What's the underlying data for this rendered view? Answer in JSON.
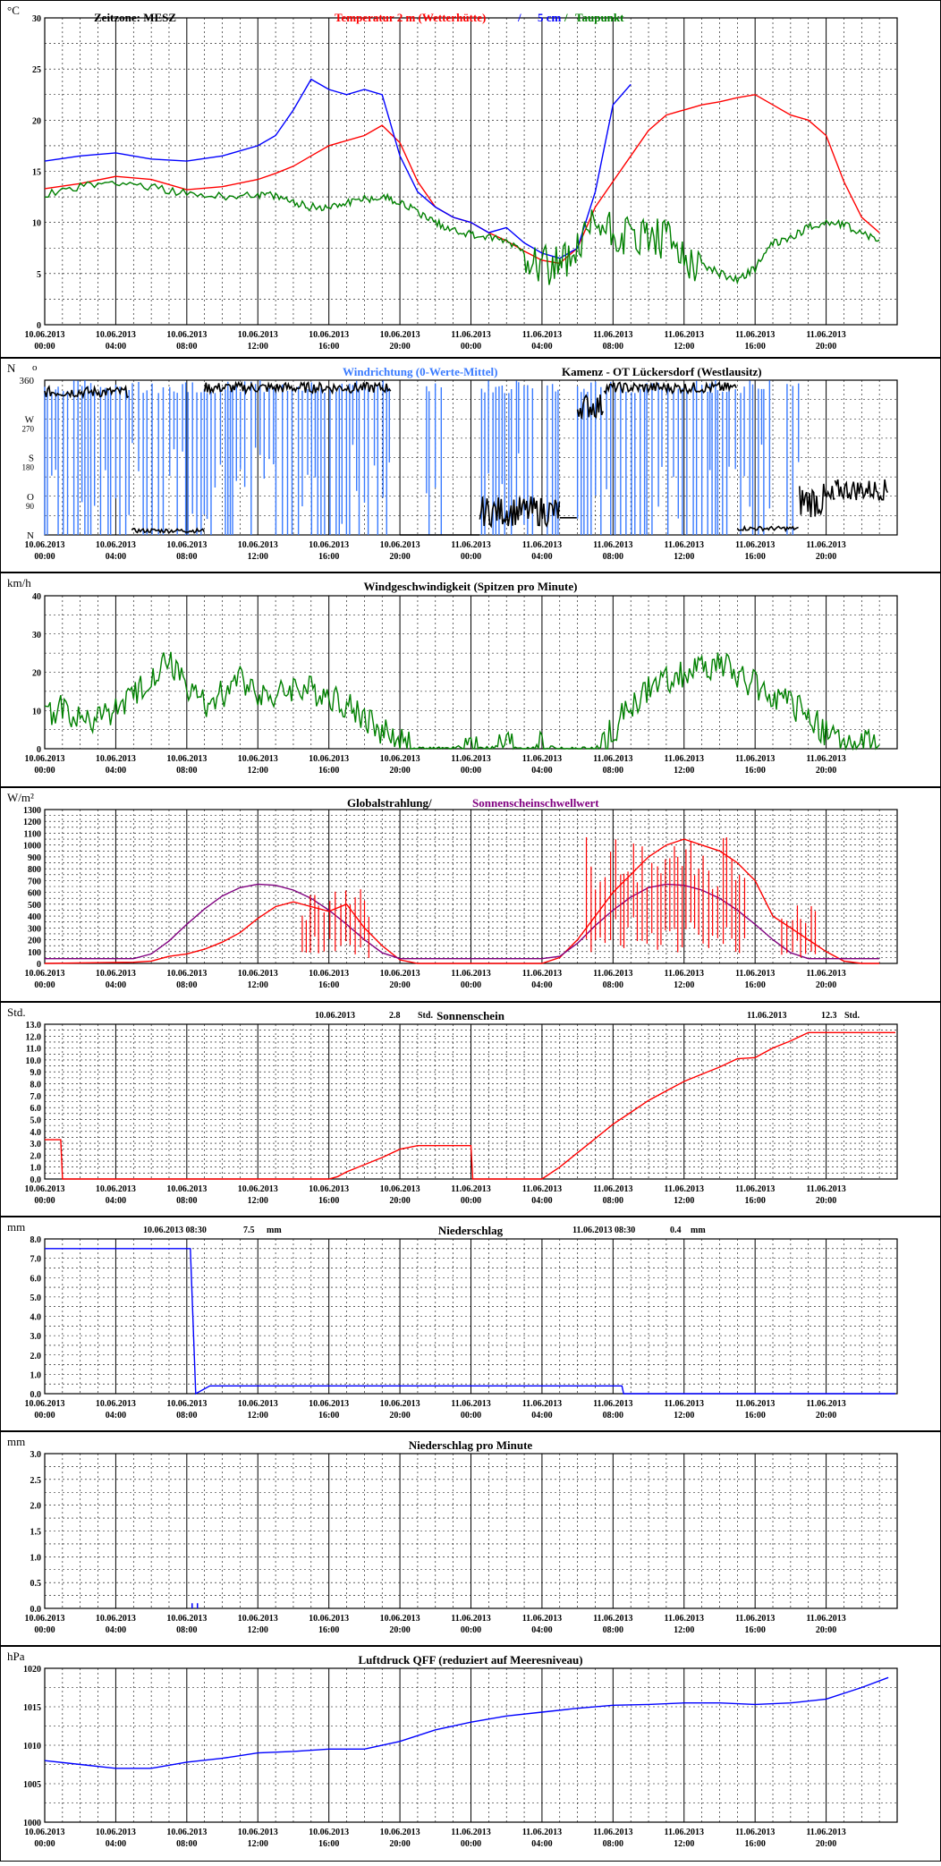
{
  "x_ticks": [
    [
      "10.06.2013",
      "00:00"
    ],
    [
      "10.06.2013",
      "04:00"
    ],
    [
      "10.06.2013",
      "08:00"
    ],
    [
      "10.06.2013",
      "12:00"
    ],
    [
      "10.06.2013",
      "16:00"
    ],
    [
      "10.06.2013",
      "20:00"
    ],
    [
      "11.06.2013",
      "00:00"
    ],
    [
      "11.06.2013",
      "04:00"
    ],
    [
      "11.06.2013",
      "08:00"
    ],
    [
      "11.06.2013",
      "12:00"
    ],
    [
      "11.06.2013",
      "16:00"
    ],
    [
      "11.06.2013",
      "20:00"
    ]
  ],
  "colors": {
    "frame": "#000000",
    "grid": "#000000",
    "red": "#ff0000",
    "blue": "#0000ff",
    "green": "#008000",
    "purple": "#800080",
    "lightblue": "#3a7bff",
    "black": "#000000"
  },
  "chart_data": [
    {
      "type": "line",
      "unit": "°C",
      "title_parts": [
        {
          "text": "Zeitzone: MESZ",
          "color": "#000000"
        },
        {
          "text": "Temperatur 2 m (Wetterhütte)",
          "color": "#ff0000"
        },
        {
          "text": " / ",
          "color": "#0000ff"
        },
        {
          "text": "5 cm",
          "color": "#0000ff"
        },
        {
          "text": " / ",
          "color": "#008000"
        },
        {
          "text": "Taupunkt",
          "color": "#008000"
        }
      ],
      "ylim": [
        0,
        30
      ],
      "yticks": [
        0,
        5,
        10,
        15,
        20,
        25,
        30
      ],
      "x_hours": [
        0,
        2,
        4,
        6,
        8,
        10,
        12,
        13,
        14,
        15,
        16,
        17,
        18,
        19,
        20,
        21,
        22,
        23,
        24,
        25,
        26,
        27,
        28,
        29,
        30,
        31,
        32,
        33,
        34,
        35,
        36,
        37,
        38,
        39,
        40,
        41,
        42,
        43,
        44,
        45,
        46,
        47
      ],
      "series": [
        {
          "name": "Temperatur 2 m (Wetterhütte)",
          "color": "#ff0000",
          "values": [
            13.3,
            13.8,
            14.5,
            14.2,
            13.2,
            13.5,
            14.2,
            14.8,
            15.5,
            16.5,
            17.5,
            18.0,
            18.5,
            19.5,
            17.8,
            14.0,
            11.5,
            10.5,
            10.0,
            9.0,
            8.2,
            7.2,
            6.3,
            6.0,
            7.5,
            11.5,
            14.0,
            16.5,
            19.0,
            20.5,
            21.0,
            21.5,
            21.8,
            22.2,
            22.5,
            21.5,
            20.5,
            20.0,
            18.5,
            14.0,
            10.5,
            9.0
          ]
        },
        {
          "name": "5 cm",
          "color": "#0000ff",
          "values": [
            16.0,
            16.5,
            16.8,
            16.2,
            16.0,
            16.5,
            17.5,
            18.5,
            21.0,
            24.0,
            23.0,
            22.5,
            23.0,
            22.5,
            16.5,
            13.0,
            11.5,
            10.5,
            10.0,
            9.0,
            9.5,
            8.0,
            7.0,
            6.5,
            7.5,
            13.0,
            21.5,
            23.5,
            null,
            null,
            null,
            null,
            null,
            null,
            null,
            null,
            null,
            null,
            null,
            null,
            null,
            null
          ]
        },
        {
          "name": "Taupunkt",
          "color": "#008000",
          "values": [
            12.8,
            13.5,
            14.0,
            13.5,
            12.8,
            12.5,
            12.8,
            12.5,
            12.0,
            11.5,
            11.5,
            12.0,
            12.3,
            12.5,
            12.0,
            11.0,
            10.0,
            9.3,
            8.8,
            8.5,
            8.2,
            7.2,
            6.2,
            5.8,
            7.0,
            10.0,
            9.0,
            8.5,
            8.5,
            8.0,
            7.0,
            6.0,
            5.0,
            4.5,
            5.5,
            8.0,
            8.5,
            9.5,
            10.0,
            9.8,
            9.0,
            8.3
          ]
        }
      ]
    },
    {
      "type": "scatter",
      "unit": "N",
      "title": "Windrichtung (0-Werte-Mittel)",
      "subtitle": "Kamenz - OT Lückersdorf (Westlausitz)",
      "ylim": [
        0,
        360
      ],
      "ytick_labels": [
        [
          "360",
          "360"
        ],
        [
          "W",
          "270"
        ],
        [
          "S",
          "180"
        ],
        [
          "O",
          "90"
        ],
        [
          "N",
          "0"
        ]
      ],
      "extra_ticks": [
        [
          "270",
          "270"
        ],
        [
          "180",
          "180"
        ],
        [
          "90",
          "90"
        ]
      ],
      "degree_mark": "o",
      "series": [
        {
          "name": "Windrichtung",
          "color": "#3a7bff",
          "values": []
        },
        {
          "name": "Mittel",
          "color": "#000000",
          "values": []
        }
      ]
    },
    {
      "type": "line",
      "unit": "km/h",
      "title": "Windgeschwindigkeit (Spitzen pro Minute)",
      "ylim": [
        0,
        40
      ],
      "yticks": [
        0,
        10,
        20,
        30,
        40
      ],
      "x_hours": [
        0,
        1,
        2,
        3,
        4,
        5,
        6,
        7,
        8,
        9,
        10,
        11,
        12,
        13,
        14,
        15,
        16,
        17,
        18,
        19,
        20,
        21,
        22,
        23,
        24,
        25,
        26,
        27,
        28,
        29,
        30,
        31,
        32,
        33,
        34,
        35,
        36,
        37,
        38,
        39,
        40,
        41,
        42,
        43,
        44,
        45,
        46,
        47
      ],
      "series": [
        {
          "name": "Windgeschwindigkeit",
          "color": "#008000",
          "values": [
            9,
            11,
            7,
            8,
            10,
            13,
            19,
            23,
            16,
            12,
            14,
            18,
            15,
            13,
            16,
            15,
            14,
            11,
            8,
            5,
            2,
            0,
            0,
            0,
            1,
            0,
            1,
            0,
            1,
            0,
            0,
            0,
            5,
            11,
            15,
            18,
            20,
            21,
            22,
            19,
            17,
            14,
            11,
            9,
            4,
            1,
            1,
            1
          ]
        }
      ]
    },
    {
      "type": "line",
      "unit": "W/m²",
      "title_parts": [
        {
          "text": "Globalstrahlung/",
          "color": "#000000"
        },
        {
          "text": " Sonnenscheinschwellwert",
          "color": "#800080"
        }
      ],
      "ylim": [
        0,
        1300
      ],
      "yticks": [
        0,
        100,
        200,
        300,
        400,
        500,
        600,
        700,
        800,
        900,
        1000,
        1100,
        1200,
        1300
      ],
      "x_hours": [
        0,
        5,
        6,
        7,
        8,
        9,
        10,
        11,
        12,
        13,
        14,
        15,
        16,
        17,
        18,
        19,
        20,
        21,
        22,
        23,
        24,
        25,
        26,
        27,
        28,
        29,
        30,
        31,
        32,
        33,
        34,
        35,
        36,
        37,
        38,
        39,
        40,
        41,
        42,
        43,
        44,
        45,
        46,
        47
      ],
      "series": [
        {
          "name": "Globalstrahlung",
          "color": "#ff0000",
          "values": [
            0,
            10,
            20,
            60,
            80,
            120,
            180,
            260,
            380,
            480,
            520,
            480,
            440,
            500,
            300,
            150,
            30,
            0,
            0,
            0,
            0,
            0,
            0,
            0,
            0,
            50,
            200,
            400,
            600,
            750,
            900,
            1000,
            1050,
            1000,
            950,
            850,
            700,
            400,
            300,
            200,
            100,
            20,
            0,
            0
          ]
        },
        {
          "name": "Sonnenscheinschwellwert",
          "color": "#800080",
          "values": [
            40,
            40,
            80,
            190,
            330,
            460,
            570,
            640,
            670,
            660,
            620,
            550,
            450,
            330,
            200,
            90,
            40,
            40,
            40,
            40,
            40,
            40,
            40,
            40,
            40,
            60,
            170,
            320,
            450,
            560,
            640,
            670,
            660,
            620,
            550,
            450,
            330,
            200,
            90,
            40,
            40,
            40,
            40,
            40
          ]
        }
      ]
    },
    {
      "type": "line",
      "unit": "Std.",
      "title": "Sonnenschein",
      "annotations": [
        [
          "10.06.2013",
          "2.8",
          "Std."
        ],
        [
          "11.06.2013",
          "12.3",
          "Std."
        ]
      ],
      "ylim": [
        0,
        13
      ],
      "yticks": [
        0,
        1,
        2,
        3,
        4,
        5,
        6,
        7,
        8,
        9,
        10,
        11,
        12,
        13
      ],
      "x_hours": [
        0,
        0.9,
        1.0,
        16.0,
        16.5,
        17.0,
        18.0,
        19.0,
        20.0,
        21.0,
        22.0,
        24.0,
        24.1,
        28.0,
        29.0,
        30.0,
        31.0,
        32.0,
        33.0,
        34.0,
        35.0,
        36.0,
        37.0,
        38.0,
        39.0,
        40.0,
        41.0,
        42.0,
        43.0,
        47.9
      ],
      "series": [
        {
          "name": "Sonnenschein",
          "color": "#ff0000",
          "values": [
            3.3,
            3.3,
            0.0,
            0.0,
            0.2,
            0.6,
            1.2,
            1.8,
            2.5,
            2.8,
            2.8,
            2.8,
            0.0,
            0.0,
            1.0,
            2.2,
            3.4,
            4.6,
            5.6,
            6.6,
            7.4,
            8.2,
            8.8,
            9.4,
            10.1,
            10.2,
            11.0,
            11.6,
            12.3,
            12.3
          ]
        }
      ]
    },
    {
      "type": "line",
      "unit": "mm",
      "title": "Niederschlag",
      "annotations": [
        [
          "10.06.2013 08:30",
          "7.5",
          "mm"
        ],
        [
          "11.06.2013 08:30",
          "0.4",
          "mm"
        ]
      ],
      "ylim": [
        0,
        8
      ],
      "yticks": [
        0,
        1,
        2,
        3,
        4,
        5,
        6,
        7,
        8
      ],
      "x_hours": [
        0,
        8.2,
        8.5,
        9.3,
        32.5,
        32.6,
        47.9
      ],
      "series": [
        {
          "name": "Niederschlag",
          "color": "#0000ff",
          "values": [
            7.5,
            7.5,
            0.0,
            0.4,
            0.4,
            0.0,
            0.0
          ]
        }
      ]
    },
    {
      "type": "bar",
      "unit": "mm",
      "title": "Niederschlag pro Minute",
      "ylim": [
        0,
        3
      ],
      "yticks": [
        0,
        0.5,
        1,
        1.5,
        2,
        2.5,
        3
      ],
      "ytick_labels_text": [
        "0.0",
        "0.5",
        "1.0",
        "1.5",
        "2.0",
        "2.5",
        "3.0"
      ],
      "x_hours": [
        8.3,
        8.6
      ],
      "series": [
        {
          "name": "Niederschlag pro Minute",
          "color": "#0000ff",
          "values": [
            0.1,
            0.1
          ]
        }
      ]
    },
    {
      "type": "line",
      "unit": "hPa",
      "title": "Luftdruck QFF (reduziert auf Meeresniveau)",
      "ylim": [
        1000,
        1020
      ],
      "yticks": [
        1000,
        1005,
        1010,
        1015,
        1020
      ],
      "x_hours": [
        0,
        2,
        4,
        6,
        8,
        10,
        12,
        14,
        16,
        18,
        20,
        22,
        24,
        26,
        28,
        30,
        32,
        34,
        36,
        38,
        40,
        42,
        44,
        46,
        47.5
      ],
      "series": [
        {
          "name": "Luftdruck QFF",
          "color": "#0000ff",
          "values": [
            1008.0,
            1007.5,
            1007.0,
            1007.0,
            1007.8,
            1008.3,
            1009.0,
            1009.2,
            1009.5,
            1009.5,
            1010.5,
            1012.0,
            1013.0,
            1013.8,
            1014.3,
            1014.8,
            1015.2,
            1015.3,
            1015.5,
            1015.5,
            1015.3,
            1015.5,
            1016.0,
            1017.5,
            1018.8
          ]
        }
      ]
    }
  ]
}
